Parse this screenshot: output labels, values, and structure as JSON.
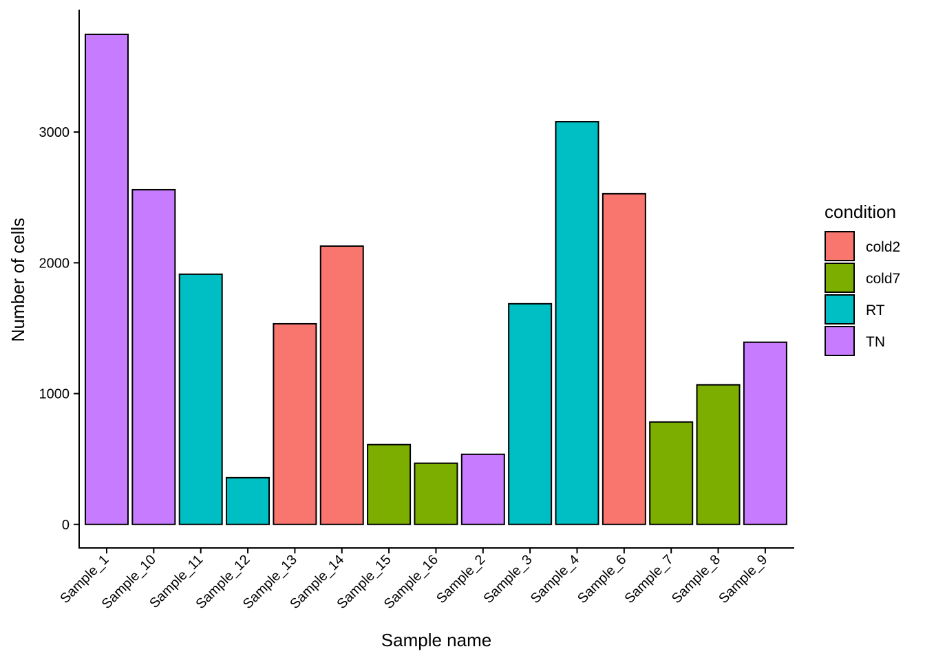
{
  "chart_data": {
    "type": "bar",
    "title": "",
    "xlabel": "Sample name",
    "ylabel": "Number of cells",
    "ylim": [
      -180,
      3936
    ],
    "yticks": [
      0,
      1000,
      2000,
      3000
    ],
    "grid": false,
    "legend_position": "right",
    "legend_title": "condition",
    "legend": [
      {
        "name": "cold2",
        "color": "#F8766D"
      },
      {
        "name": "cold7",
        "color": "#7CAE00"
      },
      {
        "name": "RT",
        "color": "#00BFC4"
      },
      {
        "name": "TN",
        "color": "#C77CFF"
      }
    ],
    "categories": [
      "Sample_1",
      "Sample_10",
      "Sample_11",
      "Sample_12",
      "Sample_13",
      "Sample_14",
      "Sample_15",
      "Sample_16",
      "Sample_2",
      "Sample_3",
      "Sample_4",
      "Sample_6",
      "Sample_7",
      "Sample_8",
      "Sample_9"
    ],
    "values": [
      3747,
      2559,
      1913,
      357,
      1534,
      2128,
      610,
      468,
      536,
      1687,
      3079,
      2528,
      783,
      1067,
      1393
    ],
    "conditions": [
      "TN",
      "TN",
      "RT",
      "RT",
      "cold2",
      "cold2",
      "cold7",
      "cold7",
      "TN",
      "RT",
      "RT",
      "cold2",
      "cold7",
      "cold7",
      "TN"
    ]
  }
}
